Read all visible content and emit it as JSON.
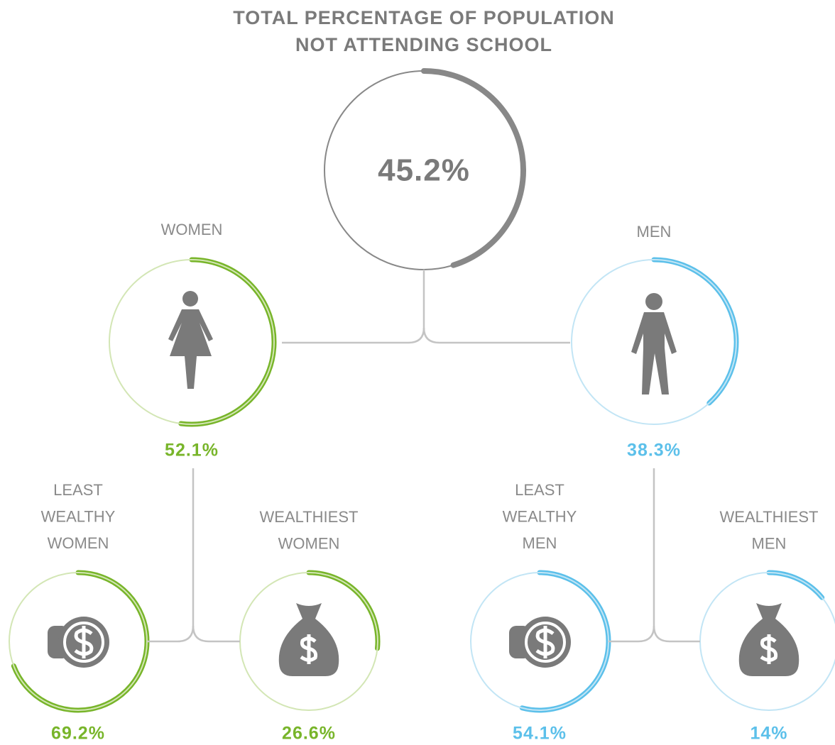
{
  "title": [
    "TOTAL PERCENTAGE OF POPULATION",
    "NOT ATTENDING SCHOOL"
  ],
  "nodes": [
    {
      "label": [],
      "value": 45.2,
      "value_label": "45.2%",
      "color": "#888888",
      "track_color": "#888888"
    },
    {
      "label": [
        "WOMEN"
      ],
      "value": 52.1,
      "value_label": "52.1%",
      "color": "#78b52a",
      "track_color": "#d3e6b5"
    },
    {
      "label": [
        "MEN"
      ],
      "value": 38.3,
      "value_label": "38.3%",
      "color": "#5cc0ea",
      "track_color": "#c2e5f5"
    },
    {
      "label": [
        "LEAST",
        "WEALTHY",
        "WOMEN"
      ],
      "value": 69.2,
      "value_label": "69.2%",
      "color": "#78b52a",
      "track_color": "#d3e6b5"
    },
    {
      "label": [
        "WEALTHIEST",
        "WOMEN"
      ],
      "value": 26.6,
      "value_label": "26.6%",
      "color": "#78b52a",
      "track_color": "#d3e6b5"
    },
    {
      "label": [
        "LEAST",
        "WEALTHY",
        "MEN"
      ],
      "value": 54.1,
      "value_label": "54.1%",
      "color": "#5cc0ea",
      "track_color": "#c2e5f5"
    },
    {
      "label": [
        "WEALTHIEST",
        "MEN"
      ],
      "value": 14,
      "value_label": "14%",
      "color": "#5cc0ea",
      "track_color": "#c2e5f5"
    }
  ]
}
